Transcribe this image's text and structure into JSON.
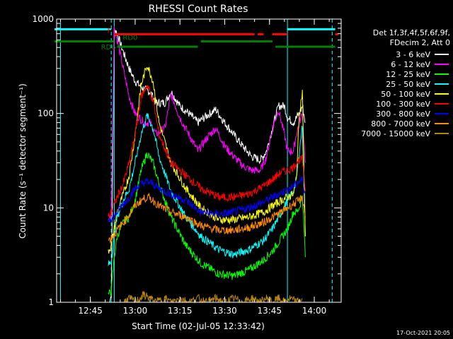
{
  "chart_data": {
    "type": "line",
    "title": "RHESSI Count Rates",
    "xlabel": "Start Time (02-Jul-05 12:33:42)",
    "ylabel": "Count Rate (s⁻¹ detector segment⁻¹)",
    "y_scale": "log",
    "ylim": [
      1,
      1000
    ],
    "y_ticks": [
      1,
      10,
      100,
      1000
    ],
    "xlim": [
      "12:33:42",
      "14:09:00"
    ],
    "x_ticks": [
      "12:45",
      "13:00",
      "13:15",
      "13:30",
      "13:45",
      "14:00"
    ],
    "grid": false,
    "legend_position": "right",
    "legend_header": [
      "Det 1f,3f,4f,5f,6f,9f,",
      "FDecim 2, Att 0"
    ],
    "series": [
      {
        "name": "3 - 6 keV",
        "color": "#ffffff",
        "x": [
          "12:51",
          "12:52",
          "12:53",
          "12:54",
          "12:56",
          "12:58",
          "13:00",
          "13:03",
          "13:05",
          "13:07",
          "13:10",
          "13:12",
          "13:15",
          "13:18",
          "13:21",
          "13:24",
          "13:27",
          "13:30",
          "13:33",
          "13:36",
          "13:39",
          "13:42",
          "13:44",
          "13:46",
          "13:48",
          "13:50",
          "13:51",
          "13:53",
          "13:54",
          "13:55",
          "13:56",
          "13:57"
        ],
        "y": [
          0.9,
          1.2,
          800,
          700,
          450,
          300,
          220,
          180,
          170,
          130,
          130,
          170,
          120,
          100,
          80,
          95,
          110,
          80,
          60,
          45,
          35,
          32,
          40,
          70,
          120,
          120,
          90,
          80,
          90,
          100,
          120,
          80
        ]
      },
      {
        "name": "6 - 12 keV",
        "color": "#ff00ff",
        "x": [
          "12:51",
          "12:52",
          "12:53",
          "12:54",
          "12:56",
          "12:58",
          "13:00",
          "13:03",
          "13:05",
          "13:07",
          "13:10",
          "13:12",
          "13:15",
          "13:18",
          "13:21",
          "13:24",
          "13:27",
          "13:30",
          "13:33",
          "13:36",
          "13:39",
          "13:42",
          "13:44",
          "13:46",
          "13:48",
          "13:50",
          "13:51",
          "13:53",
          "13:54",
          "13:55",
          "13:56",
          "13:57"
        ],
        "y": [
          7,
          9,
          800,
          600,
          300,
          150,
          100,
          80,
          80,
          60,
          70,
          160,
          90,
          60,
          40,
          55,
          70,
          45,
          35,
          28,
          25,
          25,
          35,
          70,
          110,
          60,
          40,
          40,
          60,
          80,
          100,
          30
        ]
      },
      {
        "name": "12 - 25 keV",
        "color": "#00ff00",
        "x": [
          "12:51",
          "12:52",
          "12:53",
          "12:54",
          "12:56",
          "12:58",
          "13:00",
          "13:02",
          "13:04",
          "13:06",
          "13:08",
          "13:12",
          "13:17",
          "13:22",
          "13:28",
          "13:33",
          "13:38",
          "13:43",
          "13:46",
          "13:49",
          "13:51",
          "13:53",
          "13:54",
          "13:55",
          "13:56",
          "13:57"
        ],
        "y": [
          1.2,
          1.3,
          3,
          5,
          7,
          8,
          12,
          25,
          38,
          30,
          18,
          8,
          4,
          2.6,
          2.0,
          1.9,
          2.2,
          2.8,
          3.5,
          4.8,
          6,
          9,
          9,
          10,
          14,
          3
        ]
      },
      {
        "name": "25 - 50 keV",
        "color": "#00ffff",
        "x": [
          "12:51",
          "12:52",
          "12:53",
          "12:54",
          "12:56",
          "12:58",
          "13:00",
          "13:02",
          "13:04",
          "13:06",
          "13:08",
          "13:12",
          "13:17",
          "13:22",
          "13:28",
          "13:33",
          "13:38",
          "13:43",
          "13:46",
          "13:49",
          "13:51",
          "13:53",
          "13:54",
          "13:55",
          "13:56",
          "13:57"
        ],
        "y": [
          2.5,
          2.7,
          5,
          8,
          12,
          16,
          30,
          60,
          95,
          70,
          35,
          15,
          8,
          5,
          3.6,
          3.2,
          3.6,
          4.5,
          6,
          9,
          12,
          15,
          20,
          40,
          75,
          5
        ]
      },
      {
        "name": "50 - 100 keV",
        "color": "#ffff00",
        "x": [
          "12:51",
          "12:52",
          "12:53",
          "12:54",
          "12:56",
          "12:58",
          "13:00",
          "13:02",
          "13:04",
          "13:06",
          "13:08",
          "13:12",
          "13:17",
          "13:22",
          "13:28",
          "13:33",
          "13:38",
          "13:43",
          "13:46",
          "13:49",
          "13:51",
          "13:53",
          "13:54",
          "13:55",
          "13:56",
          "13:57"
        ],
        "y": [
          3.5,
          4,
          6,
          9,
          14,
          22,
          60,
          200,
          330,
          220,
          80,
          30,
          16,
          10,
          7.5,
          7.5,
          8,
          9,
          10.5,
          12,
          13,
          14,
          20,
          100,
          170,
          5
        ]
      },
      {
        "name": "100 - 300 keV",
        "color": "#ff0000",
        "x": [
          "12:51",
          "12:52",
          "12:53",
          "12:54",
          "12:56",
          "12:58",
          "13:00",
          "13:02",
          "13:04",
          "13:06",
          "13:08",
          "13:12",
          "13:17",
          "13:22",
          "13:28",
          "13:33",
          "13:38",
          "13:43",
          "13:46",
          "13:49",
          "13:51",
          "13:53",
          "13:54",
          "13:55",
          "13:56",
          "13:57"
        ],
        "y": [
          8,
          9,
          11,
          13,
          18,
          30,
          60,
          150,
          200,
          140,
          60,
          30,
          22,
          16,
          13,
          13,
          14,
          17,
          20,
          24,
          25,
          27,
          30,
          32,
          33,
          15
        ]
      },
      {
        "name": "300 - 800 keV",
        "color": "#0000ff",
        "x": [
          "12:51",
          "12:52",
          "12:53",
          "12:54",
          "12:56",
          "12:58",
          "13:00",
          "13:02",
          "13:04",
          "13:06",
          "13:08",
          "13:12",
          "13:17",
          "13:22",
          "13:28",
          "13:33",
          "13:38",
          "13:43",
          "13:46",
          "13:49",
          "13:51",
          "13:53",
          "13:54",
          "13:55",
          "13:56",
          "13:57"
        ],
        "y": [
          7.5,
          7.8,
          8.2,
          9,
          11,
          13,
          16,
          18,
          19,
          18,
          16,
          14,
          12,
          9,
          8.5,
          9,
          10,
          11.5,
          13,
          14.5,
          15.5,
          17,
          18,
          19,
          20,
          14
        ]
      },
      {
        "name": "800 - 7000 keV",
        "color": "#ff8c00",
        "x": [
          "12:51",
          "12:52",
          "12:53",
          "12:54",
          "12:56",
          "12:58",
          "13:00",
          "13:02",
          "13:04",
          "13:06",
          "13:08",
          "13:12",
          "13:17",
          "13:22",
          "13:28",
          "13:33",
          "13:38",
          "13:43",
          "13:46",
          "13:49",
          "13:51",
          "13:53",
          "13:54",
          "13:55",
          "13:56",
          "13:57"
        ],
        "y": [
          4.5,
          4.8,
          5.2,
          5.8,
          7,
          8.5,
          10.5,
          12,
          13,
          12,
          10.5,
          9,
          8,
          6.5,
          5.8,
          5.8,
          6.2,
          7,
          8,
          9,
          10,
          11,
          11.5,
          12,
          13,
          8
        ]
      },
      {
        "name": "7000 - 15000 keV",
        "color": "#b8860b",
        "x": [
          "12:56",
          "12:58",
          "13:00",
          "13:03",
          "13:05",
          "13:07",
          "13:10",
          "13:12",
          "13:15",
          "13:18",
          "13:21",
          "13:24",
          "13:27",
          "13:30",
          "13:33",
          "13:36",
          "13:39",
          "13:42",
          "13:44",
          "13:46",
          "13:48",
          "13:50",
          "13:52",
          "13:54",
          "13:56"
        ],
        "y": [
          1.0,
          1.1,
          1.0,
          1.2,
          1.1,
          1.0,
          1.1,
          1.0,
          1.1,
          1.0,
          1.1,
          1.0,
          1.1,
          1.0,
          1.1,
          1.0,
          1.1,
          1.0,
          1.1,
          1.0,
          1.1,
          1.0,
          1.1,
          1.0,
          1.1
        ]
      }
    ],
    "vertical_lines": [
      {
        "x": "12:35",
        "color": "#00ffff",
        "style": "solid"
      },
      {
        "x": "12:52",
        "color": "#00ffff",
        "style": "dashed"
      },
      {
        "x": "12:53",
        "color": "#00ffff",
        "style": "solid"
      },
      {
        "x": "13:51",
        "color": "#00ffff",
        "style": "solid"
      },
      {
        "x": "14:06",
        "color": "#00ffff",
        "style": "dashed"
      }
    ],
    "flag_bars": [
      {
        "label": "",
        "color": "#00ffff",
        "y": 780,
        "segments": [
          [
            "12:33",
            "12:52"
          ],
          [
            "13:51",
            "14:07"
          ]
        ]
      },
      {
        "label": "F",
        "color": "#ff0000",
        "y": 690,
        "segments": [
          [
            "12:53",
            "13:40"
          ],
          [
            "13:41",
            "13:43"
          ],
          [
            "13:46",
            "13:51"
          ],
          [
            "14:07",
            "14:08"
          ]
        ]
      },
      {
        "label": "RD0",
        "color": "#008000",
        "y": 580,
        "segments": [
          [
            "12:33",
            "12:53"
          ],
          [
            "13:22",
            "13:46"
          ]
        ]
      },
      {
        "label": "RD6",
        "color": "#008000",
        "y": 510,
        "segments": [
          [
            "12:54",
            "13:21"
          ],
          [
            "13:47",
            "14:07"
          ]
        ]
      }
    ],
    "y_tick_labels": [
      "1",
      "10",
      "100",
      "1000"
    ]
  },
  "footer": {
    "date": "17-Oct-2021 20:05"
  }
}
